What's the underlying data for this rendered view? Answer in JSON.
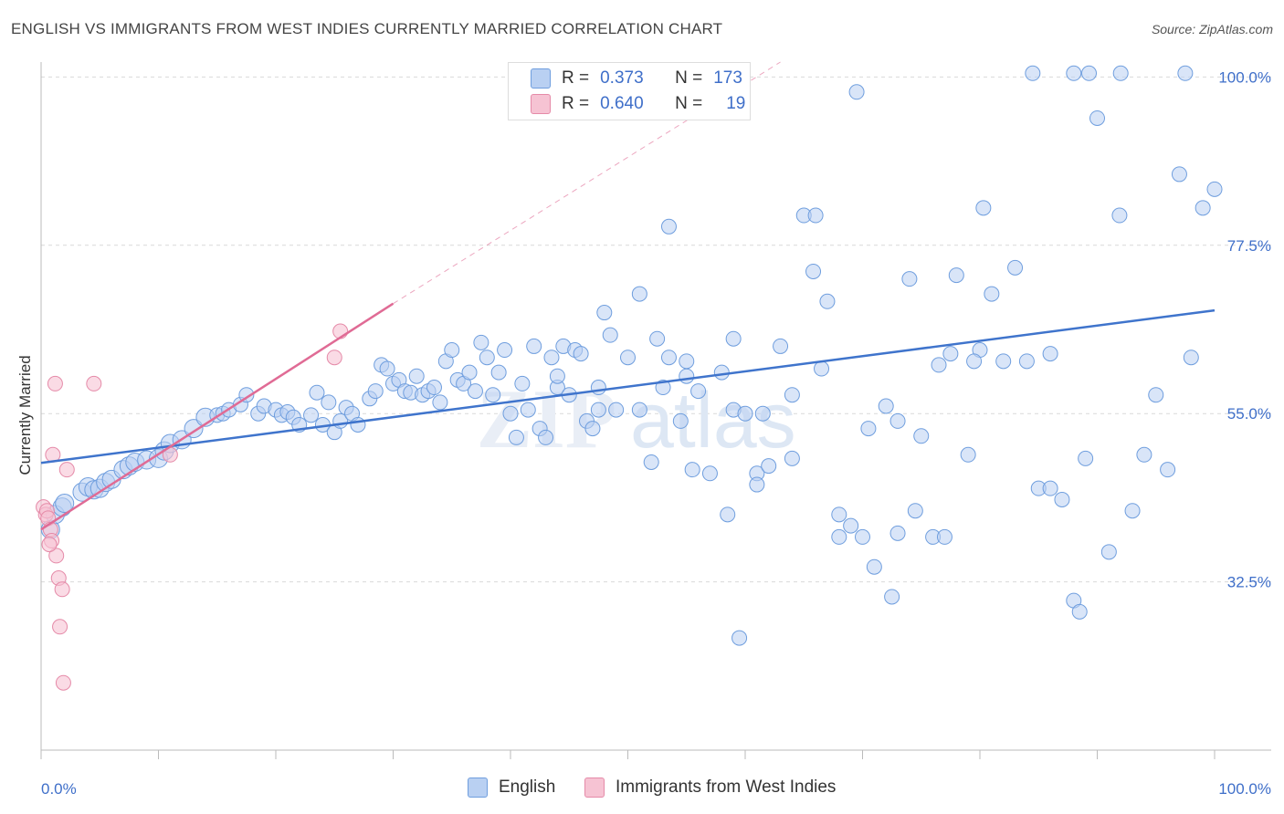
{
  "title": "ENGLISH VS IMMIGRANTS FROM WEST INDIES CURRENTLY MARRIED CORRELATION CHART",
  "source": "Source: ZipAtlas.com",
  "colors": {
    "english": "#6f9ede",
    "english_fill": "#b9d0f2",
    "westindies": "#e58aa8",
    "westindies_fill": "#f6c3d3",
    "english_line": "#3f74cc",
    "westindies_line": "#e06b95",
    "value_text": "#3f6fc9"
  },
  "legend": {
    "r_label": "R =",
    "n_label": "N =",
    "rows": [
      {
        "r": "0.373",
        "n": "173"
      },
      {
        "r": "0.640",
        "n": "19"
      }
    ]
  },
  "bottom_legend": [
    "English",
    "Immigrants from West Indies"
  ],
  "chart_data": {
    "type": "scatter",
    "title": "ENGLISH VS IMMIGRANTS FROM WEST INDIES CURRENTLY MARRIED CORRELATION CHART",
    "xlabel": "",
    "ylabel": "Currently Married",
    "xlim": [
      0,
      100
    ],
    "ylim": [
      10,
      102
    ],
    "x_tick_labels": [
      "0.0%",
      "100.0%"
    ],
    "y_ticks": [
      32.5,
      55.0,
      77.5,
      100.0
    ],
    "y_tick_labels": [
      "32.5%",
      "55.0%",
      "77.5%",
      "100.0%"
    ],
    "grid": "horizontal dashed",
    "legend_position": "top-center",
    "series": [
      {
        "name": "English",
        "r": 0.373,
        "n": 173,
        "trend": {
          "x": [
            0,
            100
          ],
          "y": [
            48.4,
            68.8
          ]
        },
        "points": [
          [
            0.8,
            39.5
          ],
          [
            1.2,
            41.5
          ],
          [
            1.8,
            42.5
          ],
          [
            2.0,
            43.0
          ],
          [
            3.5,
            44.5
          ],
          [
            4.0,
            45.2
          ],
          [
            4.5,
            44.8
          ],
          [
            5.0,
            45.0
          ],
          [
            5.5,
            45.8
          ],
          [
            6.0,
            46.2
          ],
          [
            7.0,
            47.5
          ],
          [
            7.5,
            48.0
          ],
          [
            8.0,
            48.5
          ],
          [
            9.0,
            48.8
          ],
          [
            10.0,
            49.0
          ],
          [
            10.5,
            50.0
          ],
          [
            11.0,
            51.0
          ],
          [
            12.0,
            51.5
          ],
          [
            13.0,
            53.0
          ],
          [
            14.0,
            54.5
          ],
          [
            15.0,
            54.8
          ],
          [
            15.5,
            55.0
          ],
          [
            16.0,
            55.5
          ],
          [
            17.0,
            56.2
          ],
          [
            17.5,
            57.5
          ],
          [
            18.5,
            55.0
          ],
          [
            19.0,
            56.0
          ],
          [
            20.0,
            55.5
          ],
          [
            20.5,
            54.8
          ],
          [
            21.0,
            55.2
          ],
          [
            21.5,
            54.5
          ],
          [
            22.0,
            53.5
          ],
          [
            23.0,
            54.8
          ],
          [
            23.5,
            57.8
          ],
          [
            24.0,
            53.5
          ],
          [
            24.5,
            56.5
          ],
          [
            25.0,
            52.5
          ],
          [
            25.5,
            54.0
          ],
          [
            26.0,
            55.8
          ],
          [
            26.5,
            55.0
          ],
          [
            27.0,
            53.5
          ],
          [
            28.0,
            57.0
          ],
          [
            28.5,
            58.0
          ],
          [
            29.0,
            61.5
          ],
          [
            29.5,
            61.0
          ],
          [
            30.0,
            59.0
          ],
          [
            30.5,
            59.5
          ],
          [
            31.0,
            58.0
          ],
          [
            31.5,
            57.8
          ],
          [
            32.0,
            60.0
          ],
          [
            32.5,
            57.5
          ],
          [
            33.0,
            58.0
          ],
          [
            33.5,
            58.5
          ],
          [
            34.0,
            56.5
          ],
          [
            34.5,
            62.0
          ],
          [
            35.0,
            63.5
          ],
          [
            35.5,
            59.5
          ],
          [
            36.0,
            59.0
          ],
          [
            36.5,
            60.5
          ],
          [
            37.0,
            58.0
          ],
          [
            37.5,
            64.5
          ],
          [
            38.0,
            62.5
          ],
          [
            38.5,
            57.5
          ],
          [
            39.0,
            60.5
          ],
          [
            39.5,
            63.5
          ],
          [
            40.0,
            55.0
          ],
          [
            40.5,
            51.8
          ],
          [
            41.0,
            59.0
          ],
          [
            41.5,
            55.5
          ],
          [
            42.0,
            64.0
          ],
          [
            42.5,
            53.0
          ],
          [
            43.0,
            51.8
          ],
          [
            43.5,
            62.5
          ],
          [
            44.0,
            58.5
          ],
          [
            44.5,
            64.0
          ],
          [
            45.0,
            57.5
          ],
          [
            45.5,
            63.5
          ],
          [
            46.0,
            63.0
          ],
          [
            46.5,
            54.0
          ],
          [
            47.0,
            53.0
          ],
          [
            47.5,
            58.5
          ],
          [
            48.0,
            68.5
          ],
          [
            48.5,
            65.5
          ],
          [
            49.0,
            55.5
          ],
          [
            50.0,
            62.5
          ],
          [
            51.0,
            71.0
          ],
          [
            52.0,
            48.5
          ],
          [
            52.5,
            65.0
          ],
          [
            53.0,
            58.5
          ],
          [
            53.5,
            62.5
          ],
          [
            54.5,
            54.0
          ],
          [
            55.0,
            60.0
          ],
          [
            55.5,
            47.5
          ],
          [
            57.0,
            47.0
          ],
          [
            58.0,
            60.5
          ],
          [
            58.5,
            41.5
          ],
          [
            59.0,
            55.5
          ],
          [
            60.0,
            55.0
          ],
          [
            61.0,
            47.0
          ],
          [
            62.0,
            48.0
          ],
          [
            63.0,
            64.0
          ],
          [
            64.0,
            57.5
          ],
          [
            65.0,
            81.5
          ],
          [
            66.0,
            81.5
          ],
          [
            66.5,
            61.0
          ],
          [
            67.0,
            70.0
          ],
          [
            68.0,
            41.5
          ],
          [
            69.0,
            40.0
          ],
          [
            70.0,
            38.5
          ],
          [
            71.0,
            34.5
          ],
          [
            72.0,
            56.0
          ],
          [
            73.0,
            54.0
          ],
          [
            74.0,
            73.0
          ],
          [
            75.0,
            52.0
          ],
          [
            76.0,
            38.5
          ],
          [
            77.0,
            38.5
          ],
          [
            78.0,
            73.5
          ],
          [
            79.0,
            49.5
          ],
          [
            80.0,
            63.5
          ],
          [
            81.0,
            71.0
          ],
          [
            82.0,
            62.0
          ],
          [
            83.0,
            74.5
          ],
          [
            84.0,
            62.0
          ],
          [
            85.0,
            45.0
          ],
          [
            86.0,
            45.0
          ],
          [
            87.0,
            43.5
          ],
          [
            88.0,
            30.0
          ],
          [
            89.0,
            49.0
          ],
          [
            90.0,
            94.5
          ],
          [
            91.0,
            36.5
          ],
          [
            92.0,
            100.5
          ],
          [
            93.0,
            42.0
          ],
          [
            94.0,
            49.5
          ],
          [
            95.0,
            57.5
          ],
          [
            96.0,
            47.5
          ],
          [
            97.0,
            87.0
          ],
          [
            98.0,
            62.5
          ],
          [
            99.0,
            82.5
          ],
          [
            100.0,
            85.0
          ],
          [
            84.5,
            100.5
          ],
          [
            88.0,
            100.5
          ],
          [
            89.3,
            100.5
          ],
          [
            97.5,
            100.5
          ],
          [
            69.5,
            98.0
          ],
          [
            80.3,
            82.5
          ],
          [
            91.9,
            81.5
          ],
          [
            53.5,
            80.0
          ],
          [
            55.0,
            62.0
          ],
          [
            59.0,
            65.0
          ],
          [
            61.0,
            45.5
          ],
          [
            65.8,
            74.0
          ],
          [
            70.5,
            53.0
          ],
          [
            76.5,
            61.5
          ],
          [
            79.5,
            62.0
          ],
          [
            77.5,
            63.0
          ],
          [
            86.0,
            63.0
          ],
          [
            88.5,
            28.5
          ],
          [
            74.5,
            42.0
          ],
          [
            73.0,
            39.0
          ],
          [
            72.5,
            30.5
          ],
          [
            68.0,
            38.5
          ],
          [
            64.0,
            49.0
          ],
          [
            61.5,
            55.0
          ],
          [
            59.5,
            25.0
          ],
          [
            56.0,
            58.0
          ],
          [
            51.0,
            55.5
          ],
          [
            47.5,
            55.5
          ],
          [
            44.0,
            60.0
          ]
        ]
      },
      {
        "name": "Immigrants from West Indies",
        "r": 0.64,
        "n": 19,
        "trend": {
          "x": [
            0,
            30
          ],
          "y": [
            39.5,
            69.7
          ],
          "extended_to": [
            63,
            102
          ]
        },
        "points": [
          [
            0.2,
            42.5
          ],
          [
            0.4,
            41.5
          ],
          [
            0.5,
            42.0
          ],
          [
            0.6,
            41.0
          ],
          [
            0.8,
            39.5
          ],
          [
            0.9,
            38.0
          ],
          [
            1.0,
            49.5
          ],
          [
            1.2,
            59.0
          ],
          [
            1.3,
            36.0
          ],
          [
            1.5,
            33.0
          ],
          [
            1.6,
            26.5
          ],
          [
            1.8,
            31.5
          ],
          [
            1.9,
            19.0
          ],
          [
            2.2,
            47.5
          ],
          [
            4.5,
            59.0
          ],
          [
            11.0,
            49.5
          ],
          [
            25.0,
            62.5
          ],
          [
            25.5,
            66.0
          ],
          [
            0.7,
            37.5
          ]
        ]
      }
    ]
  }
}
